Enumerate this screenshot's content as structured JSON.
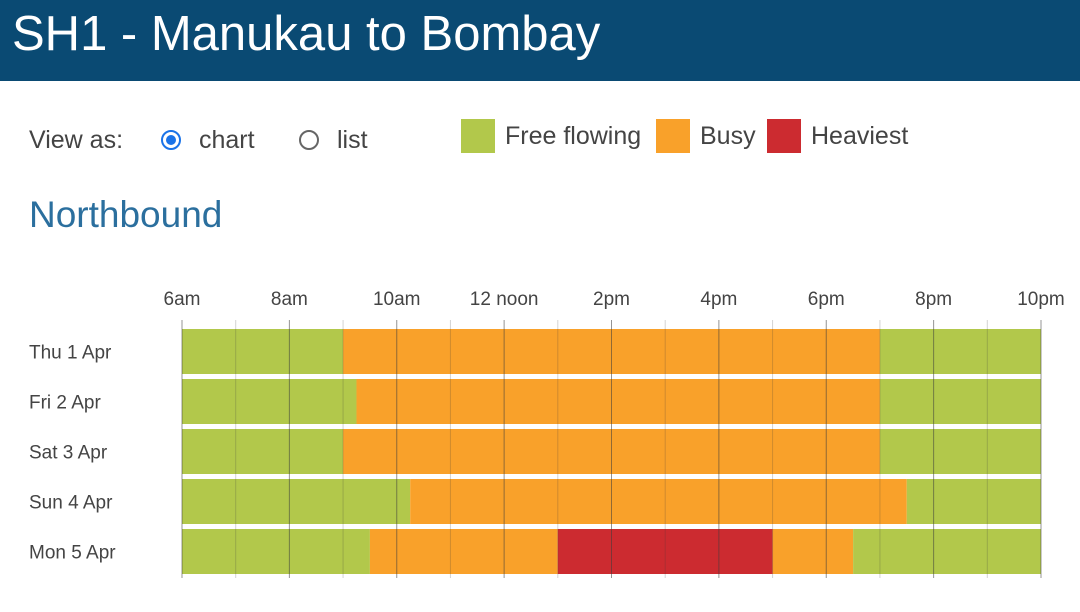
{
  "header": {
    "title": "SH1 - Manukau to Bombay"
  },
  "view_as": {
    "label": "View as:",
    "options": [
      {
        "label": "chart",
        "checked": true
      },
      {
        "label": "list",
        "checked": false
      }
    ]
  },
  "legend": [
    {
      "label": "Free flowing",
      "color": "#b2c84b"
    },
    {
      "label": "Busy",
      "color": "#f9a12a"
    },
    {
      "label": "Heaviest",
      "color": "#cc2b30"
    }
  ],
  "section": {
    "title": "Northbound"
  },
  "chart_data": {
    "type": "bar",
    "orientation": "horizontal-timeline",
    "x_range_hours": [
      6,
      22
    ],
    "x_ticks": [
      {
        "hour": 6,
        "label": "6am"
      },
      {
        "hour": 8,
        "label": "8am"
      },
      {
        "hour": 10,
        "label": "10am"
      },
      {
        "hour": 12,
        "label": "12 noon"
      },
      {
        "hour": 14,
        "label": "2pm"
      },
      {
        "hour": 16,
        "label": "4pm"
      },
      {
        "hour": 18,
        "label": "6pm"
      },
      {
        "hour": 20,
        "label": "8pm"
      },
      {
        "hour": 22,
        "label": "10pm"
      }
    ],
    "grid": true,
    "rows": [
      {
        "label": "Thu 1 Apr",
        "segments": [
          {
            "start": 6,
            "end": 9,
            "level": "Free flowing"
          },
          {
            "start": 9,
            "end": 19,
            "level": "Busy"
          },
          {
            "start": 19,
            "end": 22,
            "level": "Free flowing"
          }
        ]
      },
      {
        "label": "Fri 2 Apr",
        "segments": [
          {
            "start": 6,
            "end": 9.25,
            "level": "Free flowing"
          },
          {
            "start": 9.25,
            "end": 19,
            "level": "Busy"
          },
          {
            "start": 19,
            "end": 22,
            "level": "Free flowing"
          }
        ]
      },
      {
        "label": "Sat 3 Apr",
        "segments": [
          {
            "start": 6,
            "end": 9,
            "level": "Free flowing"
          },
          {
            "start": 9,
            "end": 19,
            "level": "Busy"
          },
          {
            "start": 19,
            "end": 22,
            "level": "Free flowing"
          }
        ]
      },
      {
        "label": "Sun 4 Apr",
        "segments": [
          {
            "start": 6,
            "end": 10.25,
            "level": "Free flowing"
          },
          {
            "start": 10.25,
            "end": 19.5,
            "level": "Busy"
          },
          {
            "start": 19.5,
            "end": 22,
            "level": "Free flowing"
          }
        ]
      },
      {
        "label": "Mon 5 Apr",
        "segments": [
          {
            "start": 6,
            "end": 9.5,
            "level": "Free flowing"
          },
          {
            "start": 9.5,
            "end": 13,
            "level": "Busy"
          },
          {
            "start": 13,
            "end": 17,
            "level": "Heaviest"
          },
          {
            "start": 17,
            "end": 18.5,
            "level": "Busy"
          },
          {
            "start": 18.5,
            "end": 22,
            "level": "Free flowing"
          }
        ]
      }
    ]
  }
}
